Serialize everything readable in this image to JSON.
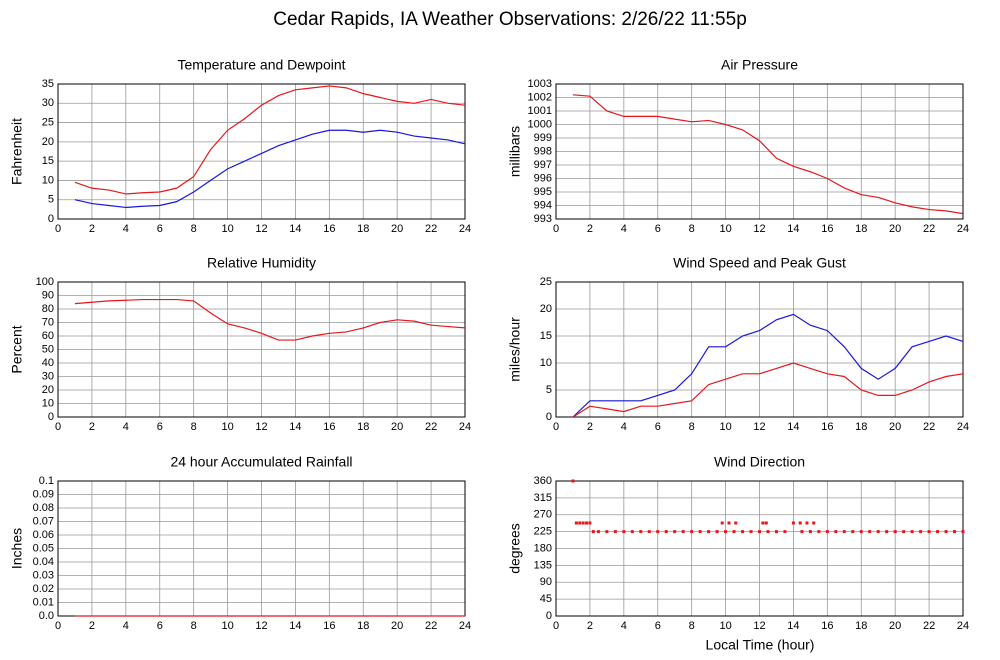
{
  "title": "Cedar Rapids, IA Weather Observations: 2/26/22 11:55p",
  "xlabel": "Local Time (hour)",
  "chart_data": [
    {
      "type": "line",
      "title": "Temperature and Dewpoint",
      "ylabel": "Fahrenheit",
      "xlim": [
        0,
        24
      ],
      "xticks": [
        0,
        2,
        4,
        6,
        8,
        10,
        12,
        14,
        16,
        18,
        20,
        22,
        24
      ],
      "ylim": [
        0,
        35
      ],
      "yticks": [
        0,
        5,
        10,
        15,
        20,
        25,
        30,
        35
      ],
      "grid": true,
      "x": [
        1,
        2,
        3,
        4,
        5,
        6,
        7,
        8,
        9,
        10,
        11,
        12,
        13,
        14,
        15,
        16,
        17,
        18,
        19,
        20,
        21,
        22,
        23,
        24
      ],
      "series": [
        {
          "color": "#e8161b",
          "values": [
            9.5,
            8,
            7.5,
            6.5,
            6.8,
            7,
            8,
            11,
            18,
            23,
            26,
            29.5,
            32,
            33.5,
            34,
            34.5,
            34,
            32.5,
            31.5,
            30.5,
            30,
            31,
            30,
            29.5
          ]
        },
        {
          "color": "#1616e0",
          "values": [
            5,
            4,
            3.5,
            3,
            3.3,
            3.5,
            4.5,
            7,
            10,
            13,
            15,
            17,
            19,
            20.5,
            22,
            23,
            23,
            22.5,
            23,
            22.5,
            21.5,
            21,
            20.5,
            19.5
          ]
        }
      ]
    },
    {
      "type": "line",
      "title": "Air Pressure",
      "ylabel": "millibars",
      "xlim": [
        0,
        24
      ],
      "xticks": [
        0,
        2,
        4,
        6,
        8,
        10,
        12,
        14,
        16,
        18,
        20,
        22,
        24
      ],
      "ylim": [
        993,
        1003
      ],
      "yticks": [
        993,
        994,
        995,
        996,
        997,
        998,
        999,
        1000,
        1001,
        1002,
        1003
      ],
      "grid": true,
      "x": [
        1,
        2,
        3,
        4,
        5,
        6,
        7,
        8,
        9,
        10,
        11,
        12,
        13,
        14,
        15,
        16,
        17,
        18,
        19,
        20,
        21,
        22,
        23,
        24
      ],
      "series": [
        {
          "color": "#e8161b",
          "values": [
            1002.2,
            1002.1,
            1001,
            1000.6,
            1000.6,
            1000.6,
            1000.4,
            1000.2,
            1000.3,
            1000,
            999.6,
            998.8,
            997.5,
            996.9,
            996.5,
            996,
            995.3,
            994.8,
            994.6,
            994.2,
            993.9,
            993.7,
            993.6,
            993.4
          ]
        }
      ]
    },
    {
      "type": "line",
      "title": "Relative Humidity",
      "ylabel": "Percent",
      "xlim": [
        0,
        24
      ],
      "xticks": [
        0,
        2,
        4,
        6,
        8,
        10,
        12,
        14,
        16,
        18,
        20,
        22,
        24
      ],
      "ylim": [
        0,
        100
      ],
      "yticks": [
        0,
        10,
        20,
        30,
        40,
        50,
        60,
        70,
        80,
        90,
        100
      ],
      "grid": true,
      "x": [
        1,
        2,
        3,
        4,
        5,
        6,
        7,
        8,
        9,
        10,
        11,
        12,
        13,
        14,
        15,
        16,
        17,
        18,
        19,
        20,
        21,
        22,
        23,
        24
      ],
      "series": [
        {
          "color": "#e8161b",
          "values": [
            84,
            85,
            86,
            86.5,
            87,
            87,
            87,
            86,
            77,
            69,
            66,
            62,
            57,
            57,
            60,
            62,
            63,
            66,
            70,
            72,
            71,
            68,
            67,
            66
          ]
        }
      ]
    },
    {
      "type": "line",
      "title": "Wind Speed and Peak Gust",
      "ylabel": "miles/hour",
      "xlim": [
        0,
        24
      ],
      "xticks": [
        0,
        2,
        4,
        6,
        8,
        10,
        12,
        14,
        16,
        18,
        20,
        22,
        24
      ],
      "ylim": [
        0,
        25
      ],
      "yticks": [
        0,
        5,
        10,
        15,
        20,
        25
      ],
      "grid": true,
      "x": [
        1,
        2,
        3,
        4,
        5,
        6,
        7,
        8,
        9,
        10,
        11,
        12,
        13,
        14,
        15,
        16,
        17,
        18,
        19,
        20,
        21,
        22,
        23,
        24
      ],
      "series": [
        {
          "color": "#1616e0",
          "values": [
            0,
            3,
            3,
            3,
            3,
            4,
            5,
            8,
            13,
            13,
            15,
            16,
            18,
            19,
            17,
            16,
            13,
            9,
            7,
            9,
            13,
            14,
            15,
            14
          ]
        },
        {
          "color": "#e8161b",
          "values": [
            0,
            2,
            1.5,
            1,
            2,
            2,
            2.5,
            3,
            6,
            7,
            8,
            8,
            9,
            10,
            9,
            8,
            7.5,
            5,
            4,
            4,
            5,
            6.5,
            7.5,
            8
          ]
        }
      ]
    },
    {
      "type": "line",
      "title": "24 hour Accumulated Rainfall",
      "ylabel": "Inches",
      "xlim": [
        0,
        24
      ],
      "xticks": [
        0,
        2,
        4,
        6,
        8,
        10,
        12,
        14,
        16,
        18,
        20,
        22,
        24
      ],
      "ylim": [
        0,
        0.1
      ],
      "yticks": [
        {
          "value": 0,
          "label": "0.0"
        },
        0.01,
        0.02,
        0.03,
        0.04,
        0.05,
        0.06,
        0.07,
        0.08,
        0.09,
        0.1
      ],
      "grid": true,
      "x": [
        1,
        24
      ],
      "series": [
        {
          "color": "#e8161b",
          "values": [
            0,
            0
          ]
        }
      ]
    },
    {
      "type": "scatter",
      "title": "Wind Direction",
      "ylabel": "degrees",
      "xlim": [
        0,
        24
      ],
      "xticks": [
        0,
        2,
        4,
        6,
        8,
        10,
        12,
        14,
        16,
        18,
        20,
        22,
        24
      ],
      "ylim": [
        0,
        360
      ],
      "yticks": [
        0,
        45,
        90,
        135,
        180,
        225,
        270,
        315,
        360
      ],
      "grid": true,
      "color": "#e8161b",
      "x": [
        1,
        1.2,
        1.4,
        1.6,
        1.8,
        2.0,
        2.2,
        2.5,
        3,
        3.5,
        4,
        4.5,
        5,
        5.5,
        6,
        6.5,
        7,
        7.5,
        8,
        8.5,
        9,
        9.5,
        9.8,
        10,
        10.2,
        10.5,
        10.6,
        11,
        11.5,
        12,
        12.2,
        12.4,
        12.5,
        13,
        13.5,
        14,
        14.4,
        14.5,
        14.8,
        15,
        15.2,
        15.5,
        16,
        16.5,
        17,
        17.5,
        18,
        18.5,
        19,
        19.5,
        20,
        20.5,
        21,
        21.5,
        22,
        22.5,
        23,
        23.5,
        24
      ],
      "values": [
        360,
        248,
        248,
        248,
        248,
        248,
        225,
        225,
        225,
        225,
        225,
        225,
        225,
        225,
        225,
        225,
        225,
        225,
        225,
        225,
        225,
        225,
        248,
        225,
        248,
        225,
        248,
        225,
        225,
        225,
        248,
        248,
        225,
        225,
        225,
        248,
        248,
        225,
        248,
        225,
        248,
        225,
        225,
        225,
        225,
        225,
        225,
        225,
        225,
        225,
        225,
        225,
        225,
        225,
        225,
        225,
        225,
        225,
        225
      ]
    }
  ]
}
